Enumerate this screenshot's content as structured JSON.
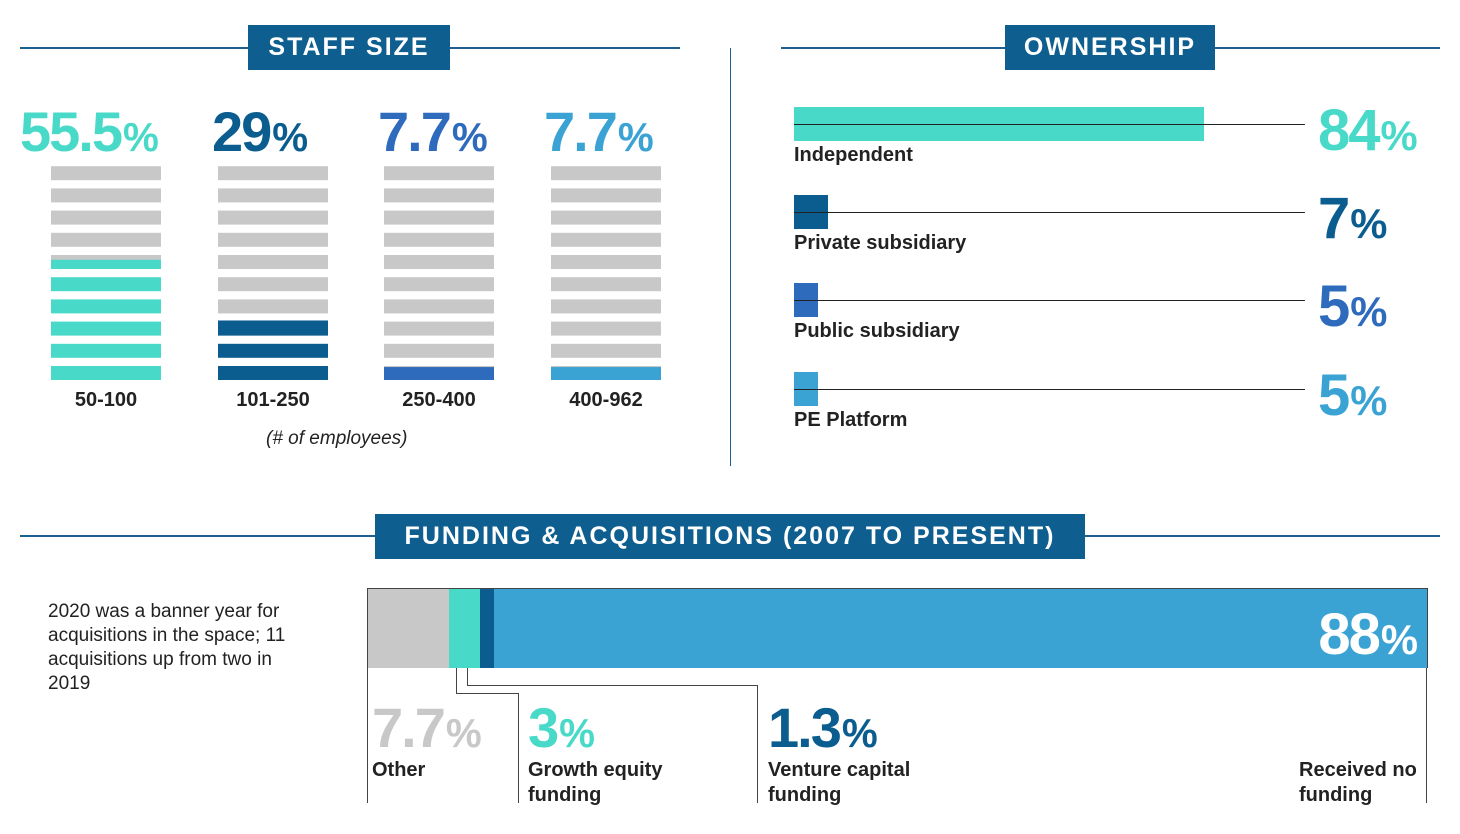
{
  "colors": {
    "teal": "#48d9c8",
    "navy": "#0b5d8f",
    "blue": "#2f6bbd",
    "sky": "#3aa3d4",
    "gray": "#c8c8c8",
    "badge": "#0e5e8f",
    "rule": "#1d5f8f"
  },
  "staff_size": {
    "title": "STAFF SIZE",
    "caption": "(# of employees)"
  },
  "ownership": {
    "title": "OWNERSHIP"
  },
  "funding": {
    "title": "FUNDING & ACQUISITIONS (2007 TO PRESENT)",
    "note": "2020 was a banner year for acquisitions in the space; 11 acquisitions up from two in 2019"
  },
  "chart_data": [
    {
      "type": "bar",
      "title": "STAFF SIZE",
      "xlabel": "(# of employees)",
      "ylabel": "",
      "ylim": [
        0,
        100
      ],
      "categories": [
        "50-100",
        "101-250",
        "250-400",
        "400-962"
      ],
      "values": [
        55.5,
        29,
        7.7,
        7.7
      ],
      "value_labels": [
        "55.5",
        "29",
        "7.7",
        "7.7"
      ],
      "colors": [
        "teal",
        "navy",
        "blue",
        "sky"
      ],
      "segments_total": 10
    },
    {
      "type": "bar",
      "orientation": "horizontal",
      "title": "OWNERSHIP",
      "ylim": [
        0,
        100
      ],
      "categories": [
        "Independent",
        "Private subsidiary",
        "Public subsidiary",
        "PE Platform"
      ],
      "values": [
        84,
        7,
        5,
        5
      ],
      "value_labels": [
        "84",
        "7",
        "5",
        "5"
      ],
      "colors": [
        "teal",
        "navy",
        "blue",
        "sky"
      ]
    },
    {
      "type": "bar",
      "orientation": "horizontal",
      "stacked": true,
      "title": "FUNDING & ACQUISITIONS (2007 TO PRESENT)",
      "categories": [
        "Other",
        "Growth equity funding",
        "Venture capital funding",
        "Received no funding"
      ],
      "values": [
        7.7,
        3,
        1.3,
        88
      ],
      "value_labels": [
        "7.7",
        "3",
        "1.3",
        "88"
      ],
      "colors": [
        "gray",
        "teal",
        "navy",
        "sky"
      ]
    }
  ]
}
